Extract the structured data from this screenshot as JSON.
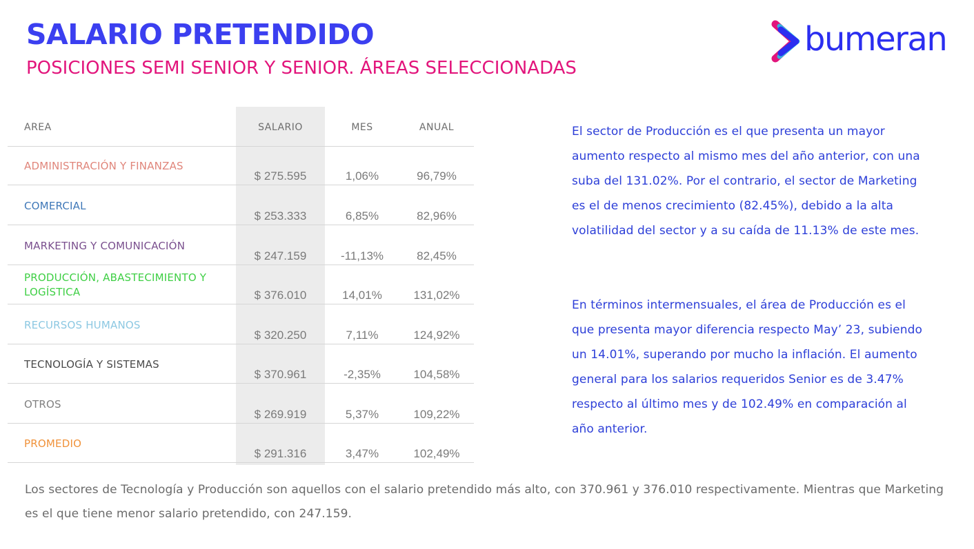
{
  "header": {
    "title": "SALARIO PRETENDIDO",
    "subtitle": "POSICIONES SEMI SENIOR Y SENIOR. ÁREAS SELECCIONADAS"
  },
  "logo": {
    "text": "bumeran",
    "colors": {
      "primary": "#2b2ef0",
      "accent_pink": "#e2157c",
      "accent_cyan": "#23c6e8"
    }
  },
  "table": {
    "columns": [
      "AREA",
      "SALARIO",
      "MES",
      "ANUAL"
    ],
    "rows": [
      {
        "area": "ADMINISTRACIÓN Y FINANZAS",
        "salario": "$ 275.595",
        "mes": "1,06%",
        "anual": "96,79%",
        "color": "#e0857a"
      },
      {
        "area": "COMERCIAL",
        "salario": "$ 253.333",
        "mes": "6,85%",
        "anual": "82,96%",
        "color": "#3f78b8"
      },
      {
        "area": "MARKETING Y COMUNICACIÓN",
        "salario": "$ 247.159",
        "mes": "-11,13%",
        "anual": "82,45%",
        "color": "#7a4f8e"
      },
      {
        "area": "PRODUCCIÓN, ABASTECIMIENTO Y LOGÍSTICA",
        "salario": "$ 376.010",
        "mes": "14,01%",
        "anual": "131,02%",
        "color": "#3fcf45"
      },
      {
        "area": "RECURSOS HUMANOS",
        "salario": "$ 320.250",
        "mes": "7,11%",
        "anual": "124,92%",
        "color": "#8cc8e2"
      },
      {
        "area": "TECNOLOGÍA Y SISTEMAS",
        "salario": "$ 370.961",
        "mes": "-2,35%",
        "anual": "104,58%",
        "color": "#4a4a4a"
      },
      {
        "area": "OTROS",
        "salario": "$ 269.919",
        "mes": "5,37%",
        "anual": "109,22%",
        "color": "#808080"
      },
      {
        "area": "PROMEDIO",
        "salario": "$ 291.316",
        "mes": "3,47%",
        "anual": "102,49%",
        "color": "#f0923a"
      }
    ]
  },
  "analysis": {
    "paragraph1": "El sector de Producción es el que presenta un mayor aumento respecto al mismo mes del año anterior, con una suba del 131.02%. Por el contrario, el sector de Marketing es el de menos crecimiento (82.45%), debido a la alta volatilidad del sector y a su caída de 11.13% de este mes.",
    "paragraph2": "En términos intermensuales, el área de Producción es el que presenta mayor diferencia respecto May’ 23, subiendo un 14.01%, superando por mucho la inflación. El aumento general para los salarios requeridos Senior es de 3.47% respecto al último mes y de 102.49% en comparación al año anterior."
  },
  "footer": {
    "text": "Los sectores de Tecnología y Producción son aquellos con el salario pretendido más alto, con 370.961 y 376.010 respectivamente. Mientras que Marketing es el que tiene menor salario pretendido, con 247.159."
  }
}
